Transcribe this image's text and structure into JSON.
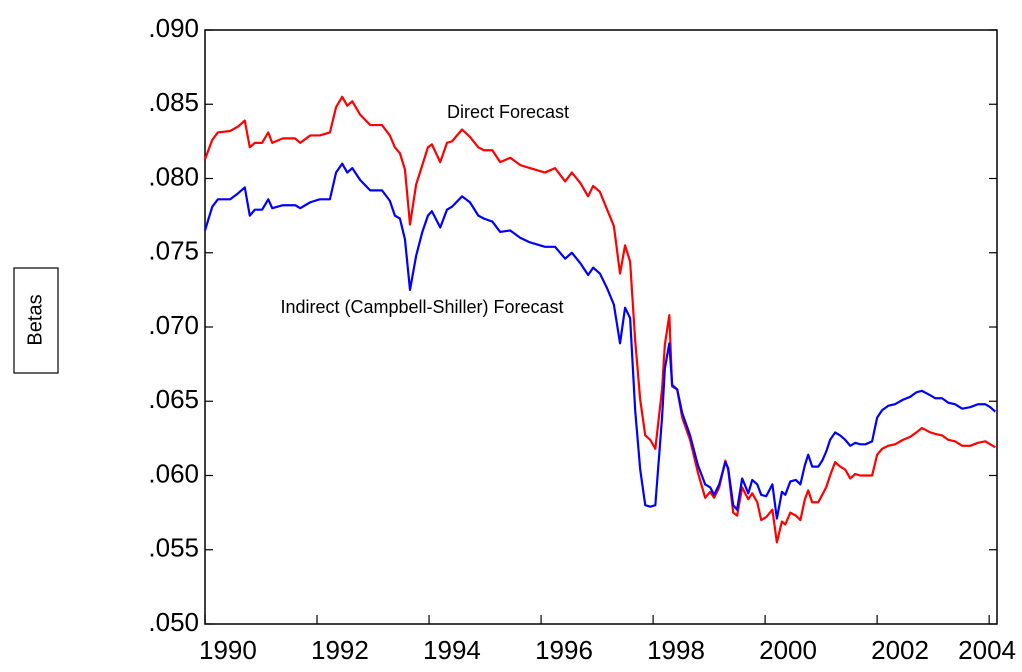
{
  "chart_data": {
    "type": "line",
    "ylabel": "Betas",
    "annotations": [
      "Direct Forecast",
      "Indirect (Campbell-Shiller) Forecast"
    ],
    "xlim": [
      1990,
      2004.14
    ],
    "xticks": [
      1990,
      1992,
      1994,
      1996,
      1998,
      2000,
      2002,
      2004
    ],
    "ylim": [
      0.05,
      0.09
    ],
    "yticks": [
      {
        "value": 0.05,
        "label": ".050"
      },
      {
        "value": 0.055,
        "label": ".055"
      },
      {
        "value": 0.06,
        "label": ".060"
      },
      {
        "value": 0.065,
        "label": ".065"
      },
      {
        "value": 0.07,
        "label": ".070"
      },
      {
        "value": 0.075,
        "label": ".075"
      },
      {
        "value": 0.08,
        "label": ".080"
      },
      {
        "value": 0.085,
        "label": ".085"
      },
      {
        "value": 0.09,
        "label": ".090"
      }
    ],
    "x": [
      1990.0,
      1990.13,
      1990.23,
      1990.45,
      1990.59,
      1990.71,
      1990.8,
      1990.89,
      1991.02,
      1991.13,
      1991.2,
      1991.39,
      1991.61,
      1991.7,
      1991.88,
      1992.05,
      1992.23,
      1992.34,
      1992.45,
      1992.54,
      1992.63,
      1992.77,
      1992.95,
      1993.16,
      1993.3,
      1993.39,
      1993.48,
      1993.57,
      1993.66,
      1993.77,
      1993.88,
      1993.98,
      1994.05,
      1994.2,
      1994.32,
      1994.41,
      1994.59,
      1994.73,
      1994.88,
      1994.98,
      1995.13,
      1995.27,
      1995.45,
      1995.63,
      1995.8,
      1996.07,
      1996.25,
      1996.43,
      1996.55,
      1996.7,
      1996.84,
      1996.93,
      1997.05,
      1997.18,
      1997.3,
      1997.41,
      1997.5,
      1997.59,
      1997.68,
      1997.77,
      1997.86,
      1997.95,
      1998.04,
      1998.16,
      1998.21,
      1998.29,
      1998.34,
      1998.43,
      1998.52,
      1998.66,
      1998.8,
      1998.93,
      1999.02,
      1999.09,
      1999.18,
      1999.29,
      1999.34,
      1999.43,
      1999.5,
      1999.59,
      1999.7,
      1999.77,
      1999.86,
      1999.93,
      2000.02,
      2000.13,
      2000.21,
      2000.3,
      2000.36,
      2000.45,
      2000.55,
      2000.63,
      2000.71,
      2000.77,
      2000.84,
      2000.95,
      2001.02,
      2001.09,
      2001.16,
      2001.25,
      2001.34,
      2001.43,
      2001.52,
      2001.61,
      2001.7,
      2001.79,
      2001.91,
      2002.0,
      2002.09,
      2002.2,
      2002.32,
      2002.46,
      2002.59,
      2002.7,
      2002.8,
      2002.95,
      2003.04,
      2003.16,
      2003.27,
      2003.39,
      2003.52,
      2003.66,
      2003.8,
      2003.93,
      2004.02,
      2004.11
    ],
    "series": [
      {
        "color": "#ff0000",
        "values": [
          0.0813,
          0.0826,
          0.0831,
          0.0832,
          0.0835,
          0.0839,
          0.0821,
          0.0824,
          0.0824,
          0.0831,
          0.0824,
          0.0827,
          0.0827,
          0.0824,
          0.0829,
          0.0829,
          0.0831,
          0.0848,
          0.0855,
          0.0849,
          0.0852,
          0.0843,
          0.0836,
          0.0836,
          0.0829,
          0.0821,
          0.0817,
          0.0806,
          0.0769,
          0.0796,
          0.0809,
          0.0821,
          0.0823,
          0.0811,
          0.0824,
          0.0825,
          0.0833,
          0.0828,
          0.0821,
          0.0819,
          0.0819,
          0.0811,
          0.0814,
          0.0809,
          0.0807,
          0.0804,
          0.0807,
          0.0798,
          0.0804,
          0.0797,
          0.0788,
          0.0795,
          0.0791,
          0.0779,
          0.0768,
          0.0736,
          0.0755,
          0.0744,
          0.0691,
          0.0651,
          0.0627,
          0.0624,
          0.0618,
          0.0658,
          0.0688,
          0.0708,
          0.066,
          0.0658,
          0.0639,
          0.0624,
          0.0602,
          0.0585,
          0.0589,
          0.0585,
          0.0592,
          0.061,
          0.0604,
          0.0575,
          0.0573,
          0.0592,
          0.0584,
          0.0588,
          0.0582,
          0.057,
          0.0572,
          0.0577,
          0.0555,
          0.0569,
          0.0567,
          0.0575,
          0.0573,
          0.057,
          0.0584,
          0.059,
          0.0582,
          0.0582,
          0.0587,
          0.0592,
          0.06,
          0.0609,
          0.0606,
          0.0604,
          0.0598,
          0.0601,
          0.06,
          0.06,
          0.06,
          0.0614,
          0.0618,
          0.062,
          0.0621,
          0.0624,
          0.0626,
          0.0629,
          0.0632,
          0.0629,
          0.0628,
          0.0627,
          0.0624,
          0.0623,
          0.062,
          0.062,
          0.0622,
          0.0623,
          0.0621,
          0.0619
        ]
      },
      {
        "color": "#0000ff",
        "values": [
          0.0765,
          0.0781,
          0.0786,
          0.0786,
          0.079,
          0.0794,
          0.0775,
          0.0779,
          0.0779,
          0.0786,
          0.078,
          0.0782,
          0.0782,
          0.078,
          0.0784,
          0.0786,
          0.0786,
          0.0804,
          0.081,
          0.0804,
          0.0807,
          0.0799,
          0.0792,
          0.0792,
          0.0785,
          0.0775,
          0.0773,
          0.0759,
          0.0725,
          0.0748,
          0.0764,
          0.0775,
          0.0778,
          0.0767,
          0.0779,
          0.0781,
          0.0788,
          0.0784,
          0.0775,
          0.0773,
          0.0771,
          0.0764,
          0.0765,
          0.076,
          0.0757,
          0.0754,
          0.0754,
          0.0746,
          0.075,
          0.0743,
          0.0735,
          0.074,
          0.0736,
          0.0726,
          0.0715,
          0.0689,
          0.0713,
          0.0706,
          0.0644,
          0.0604,
          0.058,
          0.0579,
          0.058,
          0.0639,
          0.0672,
          0.0689,
          0.0661,
          0.0658,
          0.0642,
          0.0627,
          0.0607,
          0.0594,
          0.0592,
          0.0587,
          0.0594,
          0.0609,
          0.0605,
          0.058,
          0.0577,
          0.0598,
          0.0588,
          0.0597,
          0.0594,
          0.0587,
          0.0586,
          0.0594,
          0.0571,
          0.0589,
          0.0587,
          0.0596,
          0.0597,
          0.0594,
          0.0607,
          0.0614,
          0.0606,
          0.0606,
          0.061,
          0.0616,
          0.0624,
          0.0629,
          0.0627,
          0.0624,
          0.062,
          0.0622,
          0.0621,
          0.0621,
          0.0623,
          0.0639,
          0.0644,
          0.0647,
          0.0648,
          0.0651,
          0.0653,
          0.0656,
          0.0657,
          0.0654,
          0.0652,
          0.0652,
          0.0649,
          0.0648,
          0.0645,
          0.0646,
          0.0648,
          0.0648,
          0.0646,
          0.0643
        ]
      }
    ]
  }
}
